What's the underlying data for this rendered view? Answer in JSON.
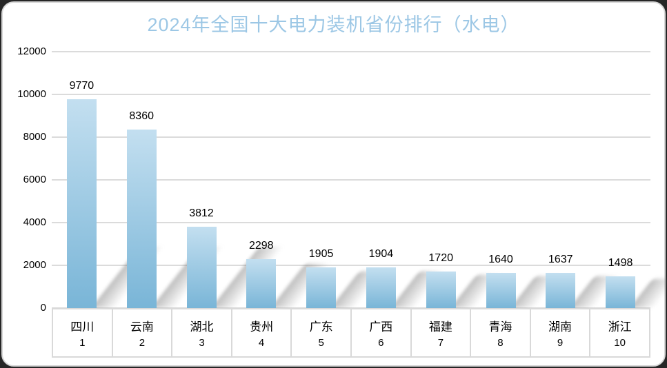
{
  "page": {
    "background_color": "#262626",
    "card_background": "#ffffff",
    "card_border_color": "#d6d6d6"
  },
  "chart_data": {
    "type": "bar",
    "title": "2024年全国十大电力装机省份排行（水电）",
    "title_color": "#9cc7e5",
    "categories": [
      "四川",
      "云南",
      "湖北",
      "贵州",
      "广东",
      "广西",
      "福建",
      "青海",
      "湖南",
      "浙江"
    ],
    "ranks": [
      "1",
      "2",
      "3",
      "4",
      "5",
      "6",
      "7",
      "8",
      "9",
      "10"
    ],
    "values": [
      9770,
      8360,
      3812,
      2298,
      1905,
      1904,
      1720,
      1640,
      1637,
      1498
    ],
    "ylim": [
      0,
      12000
    ],
    "ytick_interval": 2000,
    "yticks": [
      "0",
      "2000",
      "4000",
      "6000",
      "8000",
      "10000",
      "12000"
    ],
    "grid": "horizontal",
    "gridline_color": "#dbdbdb",
    "bar_gradient_top": "#c3dff0",
    "bar_gradient_bottom": "#79b5d7",
    "bar_shadow_color": "rgba(110,110,110,0.45)",
    "value_label_color": "#000000",
    "legend_position": "none",
    "xlabel": "",
    "ylabel": ""
  }
}
